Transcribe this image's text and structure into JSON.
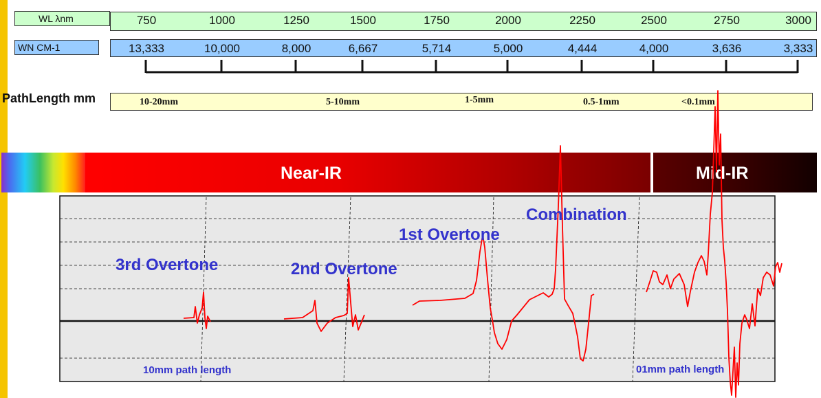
{
  "wavelength_row": {
    "label": "WL  λnm",
    "values": [
      "750",
      "1000",
      "1250",
      "1500",
      "1750",
      "2000",
      "2250",
      "2500",
      "2750",
      "3000"
    ],
    "color": "#CCFFCC"
  },
  "wavenumber_row": {
    "label": "WN CM-1",
    "values": [
      "13,333",
      "10,000",
      "8,000",
      "6,667",
      "5,714",
      "5,000",
      "4,444",
      "4,000",
      "3,636",
      "3,333"
    ],
    "color": "#99CCFF"
  },
  "pathlength_row": {
    "label": "PathLength mm",
    "values": [
      "10-20mm",
      "5-10mm",
      "1-5mm",
      "0.5-1mm",
      "<0.1mm"
    ],
    "color": "#FFFFCC"
  },
  "regions": {
    "near_ir": "Near-IR",
    "mid_ir": "Mid-IR"
  },
  "bands": {
    "third_overtone": "3rd Overtone",
    "second_overtone": "2nd Overtone",
    "first_overtone": "1st Overtone",
    "combination": "Combination"
  },
  "notes": {
    "left_path": "10mm path length",
    "right_path": "01mm path length"
  },
  "colors": {
    "edge_bar": "#F5C400",
    "spectrum_line": "#FF0000",
    "label_blue": "#3333CC",
    "plot_bg": "#E8E8E8"
  }
}
